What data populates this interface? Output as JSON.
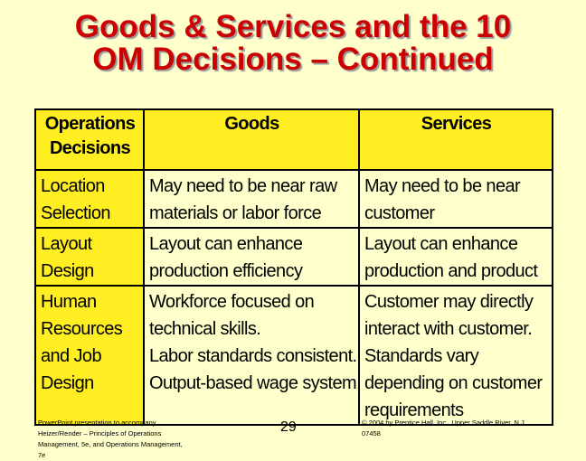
{
  "slide": {
    "title_lines": [
      "Goods & Services and the 10",
      "OM Decisions – Continued"
    ],
    "page_number": "29"
  },
  "table": {
    "headers": [
      [
        "Operations",
        "Decisions"
      ],
      [
        "Goods"
      ],
      [
        "Services"
      ]
    ],
    "rows": [
      {
        "decision": [
          "Location",
          "Selection"
        ],
        "goods": [
          "May need to be near raw",
          "materials or labor force"
        ],
        "services": [
          "May need to be near",
          "customer"
        ]
      },
      {
        "decision": [
          "Layout",
          "Design"
        ],
        "goods": [
          "Layout can enhance",
          "production efficiency"
        ],
        "services": [
          "Layout can enhance",
          "production and product"
        ]
      },
      {
        "decision": [
          "Human",
          "Resources",
          "and Job",
          "Design"
        ],
        "goods": [
          "Workforce focused on",
          "technical skills.",
          "Labor standards consistent.",
          "Output-based wage system."
        ],
        "services": [
          "Customer may  directly",
          "interact with customer.",
          "Standards vary",
          "depending on customer",
          "requirements"
        ]
      }
    ]
  },
  "footer": {
    "left_lines": [
      "PowerPoint presentation to accompany",
      "Heizer/Render – Principles of Operations",
      "Management, 5e, and Operations Management,",
      "7e"
    ],
    "right_lines": [
      "© 2004 by Prentice Hall, Inc., Upper Saddle River, N.J.",
      "07458"
    ]
  },
  "colors": {
    "background": "#ffffcc",
    "title": "#cc0000",
    "header_fill": "#ffee22"
  }
}
